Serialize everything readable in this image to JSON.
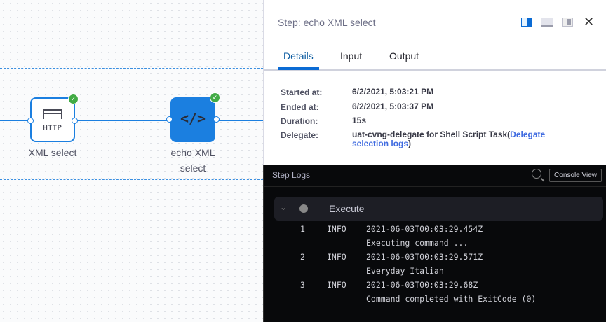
{
  "canvas": {
    "nodes": [
      {
        "label": "XML select",
        "icon_text": "HTTP",
        "status": "success"
      },
      {
        "label_line1": "echo XML",
        "label_line2": "select",
        "status": "success"
      }
    ]
  },
  "panel": {
    "title": "Step: echo XML select",
    "tabs": [
      "Details",
      "Input",
      "Output"
    ],
    "active_tab": "Details",
    "details": {
      "started_label": "Started at:",
      "started": "6/2/2021, 5:03:21 PM",
      "ended_label": "Ended at:",
      "ended": "6/2/2021, 5:03:37 PM",
      "duration_label": "Duration:",
      "duration": "15s",
      "delegate_label": "Delegate:",
      "delegate_text": "uat-cvng-delegate for Shell Script Task(",
      "delegate_link": "Delegate selection logs",
      "delegate_end": ")"
    }
  },
  "logs": {
    "title": "Step Logs",
    "console_view": "Console View",
    "section": "Execute",
    "lines": [
      {
        "n": "1",
        "level": "INFO",
        "ts": "2021-06-03T00:03:29.454Z",
        "msg": "Executing command ..."
      },
      {
        "n": "2",
        "level": "INFO",
        "ts": "2021-06-03T00:03:29.571Z",
        "msg": "Everyday Italian"
      },
      {
        "n": "3",
        "level": "INFO",
        "ts": "2021-06-03T00:03:29.68Z",
        "msg": "Command completed with ExitCode (0)"
      }
    ]
  },
  "colors": {
    "accent": "#0b6bd4",
    "success": "#42ab45"
  }
}
